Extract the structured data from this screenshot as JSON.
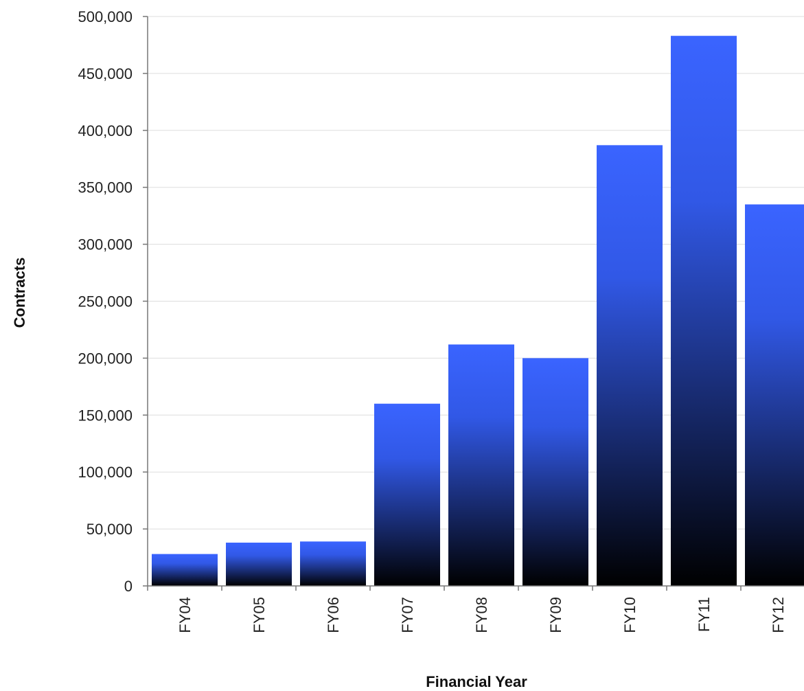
{
  "chart_data": {
    "type": "bar",
    "title": "",
    "xlabel": "Financial Year",
    "ylabel": "Contracts",
    "categories": [
      "FY04",
      "FY05",
      "FY06",
      "FY07",
      "FY08",
      "FY09",
      "FY10",
      "FY11",
      "FY12"
    ],
    "series": [
      {
        "values": [
          28000,
          38000,
          39000,
          160000,
          212000,
          200000,
          387000,
          483000,
          335000
        ]
      }
    ],
    "ylim": [
      0,
      500000
    ],
    "yticks": [
      0,
      50000,
      100000,
      150000,
      200000,
      250000,
      300000,
      350000,
      400000,
      450000,
      500000
    ],
    "ytick_labels": [
      "0",
      "50,000",
      "100,000",
      "150,000",
      "200,000",
      "250,000",
      "300,000",
      "350,000",
      "400,000",
      "450,000",
      "500,000"
    ],
    "grid": true,
    "legend": "none",
    "colors": {
      "bar_top": "#3a64ff",
      "bar_bottom": "#000000",
      "grid": "#dddddd",
      "axis": "#777777"
    }
  }
}
